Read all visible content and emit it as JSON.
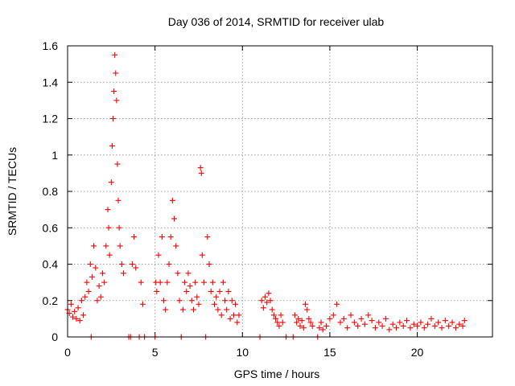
{
  "chart_data": {
    "type": "scatter",
    "title": "Day 036 of 2014, SRMTID for receiver ulab",
    "xlabel": "GPS time / hours",
    "ylabel": "SRMTID / TECUs",
    "xlim": [
      0,
      24.3
    ],
    "ylim": [
      0,
      1.6
    ],
    "xticks": [
      0,
      5,
      10,
      15,
      20
    ],
    "xtick_labels": [
      "0",
      "5",
      "10",
      "15",
      "20"
    ],
    "yticks": [
      0,
      0.2,
      0.4,
      0.6,
      0.8,
      1.0,
      1.2,
      1.4,
      1.6
    ],
    "ytick_labels": [
      "0",
      "0.2",
      "0.4",
      "0.6",
      "0.8",
      "1",
      "1.2",
      "1.4",
      "1.6"
    ],
    "grid": true,
    "marker": "+",
    "color": "#ff0000",
    "series": [
      {
        "name": "SRMTID",
        "points": [
          [
            0.0,
            0.15
          ],
          [
            0.1,
            0.13
          ],
          [
            0.2,
            0.18
          ],
          [
            0.3,
            0.11
          ],
          [
            0.4,
            0.14
          ],
          [
            0.5,
            0.1
          ],
          [
            0.6,
            0.16
          ],
          [
            0.7,
            0.09
          ],
          [
            0.8,
            0.2
          ],
          [
            0.9,
            0.12
          ],
          [
            1.0,
            0.22
          ],
          [
            1.1,
            0.3
          ],
          [
            1.2,
            0.25
          ],
          [
            1.3,
            0.4
          ],
          [
            1.35,
            0.0
          ],
          [
            1.4,
            0.33
          ],
          [
            1.5,
            0.5
          ],
          [
            1.6,
            0.38
          ],
          [
            1.7,
            0.2
          ],
          [
            1.8,
            0.28
          ],
          [
            1.9,
            0.22
          ],
          [
            2.0,
            0.35
          ],
          [
            2.1,
            0.3
          ],
          [
            2.2,
            0.5
          ],
          [
            2.3,
            0.7
          ],
          [
            2.35,
            0.6
          ],
          [
            2.4,
            0.45
          ],
          [
            2.5,
            0.85
          ],
          [
            2.55,
            1.05
          ],
          [
            2.6,
            1.2
          ],
          [
            2.65,
            1.35
          ],
          [
            2.7,
            1.55
          ],
          [
            2.75,
            1.45
          ],
          [
            2.8,
            1.3
          ],
          [
            2.85,
            0.95
          ],
          [
            2.9,
            0.75
          ],
          [
            2.95,
            0.6
          ],
          [
            3.0,
            0.5
          ],
          [
            3.1,
            0.4
          ],
          [
            3.2,
            0.35
          ],
          [
            3.5,
            0.0
          ],
          [
            3.6,
            0.0
          ],
          [
            3.7,
            0.4
          ],
          [
            3.8,
            0.55
          ],
          [
            3.9,
            0.38
          ],
          [
            4.1,
            0.0
          ],
          [
            4.2,
            0.3
          ],
          [
            4.3,
            0.18
          ],
          [
            4.4,
            0.0
          ],
          [
            5.0,
            0.0
          ],
          [
            5.05,
            0.3
          ],
          [
            5.1,
            0.25
          ],
          [
            5.2,
            0.45
          ],
          [
            5.3,
            0.3
          ],
          [
            5.4,
            0.55
          ],
          [
            5.5,
            0.2
          ],
          [
            5.6,
            0.15
          ],
          [
            5.7,
            0.3
          ],
          [
            5.8,
            0.4
          ],
          [
            5.9,
            0.55
          ],
          [
            6.0,
            0.75
          ],
          [
            6.1,
            0.65
          ],
          [
            6.2,
            0.5
          ],
          [
            6.3,
            0.35
          ],
          [
            6.4,
            0.2
          ],
          [
            6.5,
            0.0
          ],
          [
            6.6,
            0.15
          ],
          [
            6.7,
            0.3
          ],
          [
            6.8,
            0.25
          ],
          [
            6.9,
            0.35
          ],
          [
            7.0,
            0.28
          ],
          [
            7.1,
            0.2
          ],
          [
            7.2,
            0.15
          ],
          [
            7.3,
            0.3
          ],
          [
            7.4,
            0.22
          ],
          [
            7.5,
            0.18
          ],
          [
            7.6,
            0.93
          ],
          [
            7.65,
            0.9
          ],
          [
            7.7,
            0.45
          ],
          [
            7.8,
            0.3
          ],
          [
            7.9,
            0.0
          ],
          [
            8.0,
            0.55
          ],
          [
            8.1,
            0.4
          ],
          [
            8.2,
            0.25
          ],
          [
            8.3,
            0.3
          ],
          [
            8.4,
            0.18
          ],
          [
            8.5,
            0.22
          ],
          [
            8.6,
            0.15
          ],
          [
            8.7,
            0.25
          ],
          [
            8.8,
            0.12
          ],
          [
            8.9,
            0.3
          ],
          [
            9.0,
            0.2
          ],
          [
            9.1,
            0.15
          ],
          [
            9.2,
            0.25
          ],
          [
            9.3,
            0.1
          ],
          [
            9.4,
            0.2
          ],
          [
            9.5,
            0.12
          ],
          [
            9.6,
            0.18
          ],
          [
            9.7,
            0.08
          ],
          [
            9.8,
            0.12
          ],
          [
            11.0,
            0.0
          ],
          [
            11.1,
            0.2
          ],
          [
            11.2,
            0.16
          ],
          [
            11.3,
            0.22
          ],
          [
            11.4,
            0.19
          ],
          [
            11.5,
            0.24
          ],
          [
            11.6,
            0.2
          ],
          [
            11.7,
            0.15
          ],
          [
            11.8,
            0.12
          ],
          [
            11.9,
            0.1
          ],
          [
            12.0,
            0.08
          ],
          [
            12.1,
            0.06
          ],
          [
            12.2,
            0.12
          ],
          [
            12.3,
            0.08
          ],
          [
            12.5,
            0.0
          ],
          [
            12.9,
            0.0
          ],
          [
            13.0,
            0.12
          ],
          [
            13.1,
            0.08
          ],
          [
            13.2,
            0.1
          ],
          [
            13.3,
            0.06
          ],
          [
            13.4,
            0.09
          ],
          [
            13.5,
            0.05
          ],
          [
            13.6,
            0.18
          ],
          [
            13.7,
            0.15
          ],
          [
            13.8,
            0.1
          ],
          [
            13.9,
            0.08
          ],
          [
            14.0,
            0.06
          ],
          [
            14.3,
            0.0
          ],
          [
            14.4,
            0.05
          ],
          [
            14.5,
            0.08
          ],
          [
            14.6,
            0.04
          ],
          [
            14.8,
            0.06
          ],
          [
            15.0,
            0.1
          ],
          [
            15.2,
            0.12
          ],
          [
            15.4,
            0.18
          ],
          [
            15.6,
            0.08
          ],
          [
            15.8,
            0.1
          ],
          [
            16.0,
            0.05
          ],
          [
            16.2,
            0.12
          ],
          [
            16.4,
            0.08
          ],
          [
            16.6,
            0.06
          ],
          [
            16.8,
            0.1
          ],
          [
            17.0,
            0.07
          ],
          [
            17.2,
            0.12
          ],
          [
            17.4,
            0.09
          ],
          [
            17.6,
            0.05
          ],
          [
            17.8,
            0.08
          ],
          [
            18.0,
            0.06
          ],
          [
            18.2,
            0.1
          ],
          [
            18.4,
            0.04
          ],
          [
            18.6,
            0.07
          ],
          [
            18.8,
            0.05
          ],
          [
            19.0,
            0.08
          ],
          [
            19.2,
            0.06
          ],
          [
            19.4,
            0.09
          ],
          [
            19.6,
            0.05
          ],
          [
            19.8,
            0.07
          ],
          [
            20.0,
            0.06
          ],
          [
            20.2,
            0.08
          ],
          [
            20.4,
            0.05
          ],
          [
            20.6,
            0.07
          ],
          [
            20.8,
            0.1
          ],
          [
            21.0,
            0.06
          ],
          [
            21.2,
            0.08
          ],
          [
            21.4,
            0.05
          ],
          [
            21.6,
            0.09
          ],
          [
            21.8,
            0.06
          ],
          [
            22.0,
            0.08
          ],
          [
            22.2,
            0.05
          ],
          [
            22.4,
            0.07
          ],
          [
            22.6,
            0.06
          ],
          [
            22.7,
            0.09
          ]
        ]
      }
    ]
  }
}
